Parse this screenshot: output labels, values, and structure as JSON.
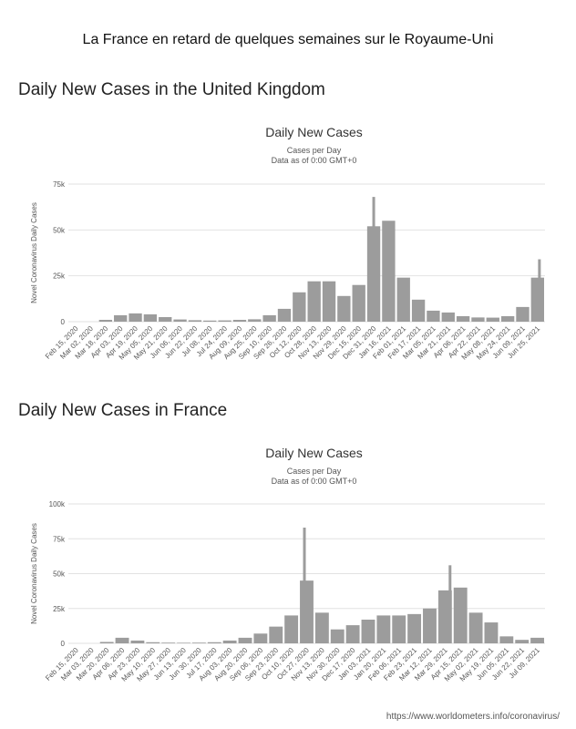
{
  "page": {
    "title": "La France en retard de quelques semaines sur le Royaume-Uni",
    "source": "https://www.worldometers.info/coronavirus/"
  },
  "sections": [
    {
      "heading": "Daily New Cases in the United Kingdom"
    },
    {
      "heading": "Daily New Cases in France"
    }
  ],
  "chart_data": [
    {
      "type": "bar",
      "title": "Daily New Cases",
      "subtitle": "Cases per Day",
      "subtitle2": "Data as of 0:00 GMT+0",
      "xlabel": "",
      "ylabel": "Novel Coronavirus Daily Cases",
      "ylim": [
        0,
        75000
      ],
      "yticks": [
        0,
        25000,
        50000,
        75000
      ],
      "ytick_labels": [
        "0",
        "25k",
        "50k",
        "75k"
      ],
      "grid": true,
      "categories": [
        "Feb 15, 2020",
        "Mar 02, 2020",
        "Mar 18, 2020",
        "Apr 03, 2020",
        "Apr 19, 2020",
        "May 05, 2020",
        "May 21, 2020",
        "Jun 06, 2020",
        "Jun 22, 2020",
        "Jul 08, 2020",
        "Jul 24, 2020",
        "Aug 09, 2020",
        "Aug 25, 2020",
        "Sep 10, 2020",
        "Sep 26, 2020",
        "Oct 12, 2020",
        "Oct 28, 2020",
        "Nov 13, 2020",
        "Nov 29, 2020",
        "Dec 15, 2020",
        "Dec 31, 2020",
        "Jan 16, 2021",
        "Feb 01, 2021",
        "Feb 17, 2021",
        "Mar 05, 2021",
        "Mar 21, 2021",
        "Apr 06, 2021",
        "Apr 22, 2021",
        "May 08, 2021",
        "May 24, 2021",
        "Jun 09, 2021",
        "Jun 25, 2021"
      ],
      "values": [
        0,
        0,
        1000,
        3500,
        4500,
        4000,
        2500,
        1200,
        800,
        600,
        700,
        1000,
        1300,
        3500,
        7000,
        16000,
        22000,
        22000,
        14000,
        20000,
        52000,
        55000,
        24000,
        12000,
        6000,
        5000,
        3000,
        2300,
        2200,
        3000,
        8000,
        24000
      ],
      "peaks": [
        {
          "date": "Jan 08, 2021",
          "value": 68000
        },
        {
          "date": "Jul 05, 2021",
          "value": 34000
        }
      ]
    },
    {
      "type": "bar",
      "title": "Daily New Cases",
      "subtitle": "Cases per Day",
      "subtitle2": "Data as of 0:00 GMT+0",
      "xlabel": "",
      "ylabel": "Novel Coronavirus Daily Cases",
      "ylim": [
        0,
        100000
      ],
      "yticks": [
        0,
        25000,
        50000,
        75000,
        100000
      ],
      "ytick_labels": [
        "0",
        "25k",
        "50k",
        "75k",
        "100k"
      ],
      "grid": true,
      "categories": [
        "Feb 15, 2020",
        "Mar 03, 2020",
        "Mar 20, 2020",
        "Apr 06, 2020",
        "Apr 23, 2020",
        "May 10, 2020",
        "May 27, 2020",
        "Jun 13, 2020",
        "Jun 30, 2020",
        "Jul 17, 2020",
        "Aug 03, 2020",
        "Aug 20, 2020",
        "Sep 06, 2020",
        "Sep 23, 2020",
        "Oct 10, 2020",
        "Oct 27, 2020",
        "Nov 13, 2020",
        "Nov 30, 2020",
        "Dec 17, 2020",
        "Jan 03, 2021",
        "Jan 20, 2021",
        "Feb 06, 2021",
        "Feb 23, 2021",
        "Mar 12, 2021",
        "Mar 29, 2021",
        "Apr 15, 2021",
        "May 02, 2021",
        "May 19, 2021",
        "Jun 05, 2021",
        "Jun 22, 2021",
        "Jul 09, 2021"
      ],
      "values": [
        0,
        0,
        1000,
        4000,
        2000,
        800,
        500,
        400,
        500,
        800,
        2000,
        4000,
        7000,
        12000,
        20000,
        45000,
        22000,
        10000,
        13000,
        17000,
        20000,
        20000,
        21000,
        25000,
        38000,
        40000,
        22000,
        15000,
        5000,
        2500,
        4000
      ],
      "peaks": [
        {
          "date": "Nov 02, 2020",
          "value": 83000
        },
        {
          "date": "Apr 12, 2021",
          "value": 56000
        }
      ]
    }
  ]
}
